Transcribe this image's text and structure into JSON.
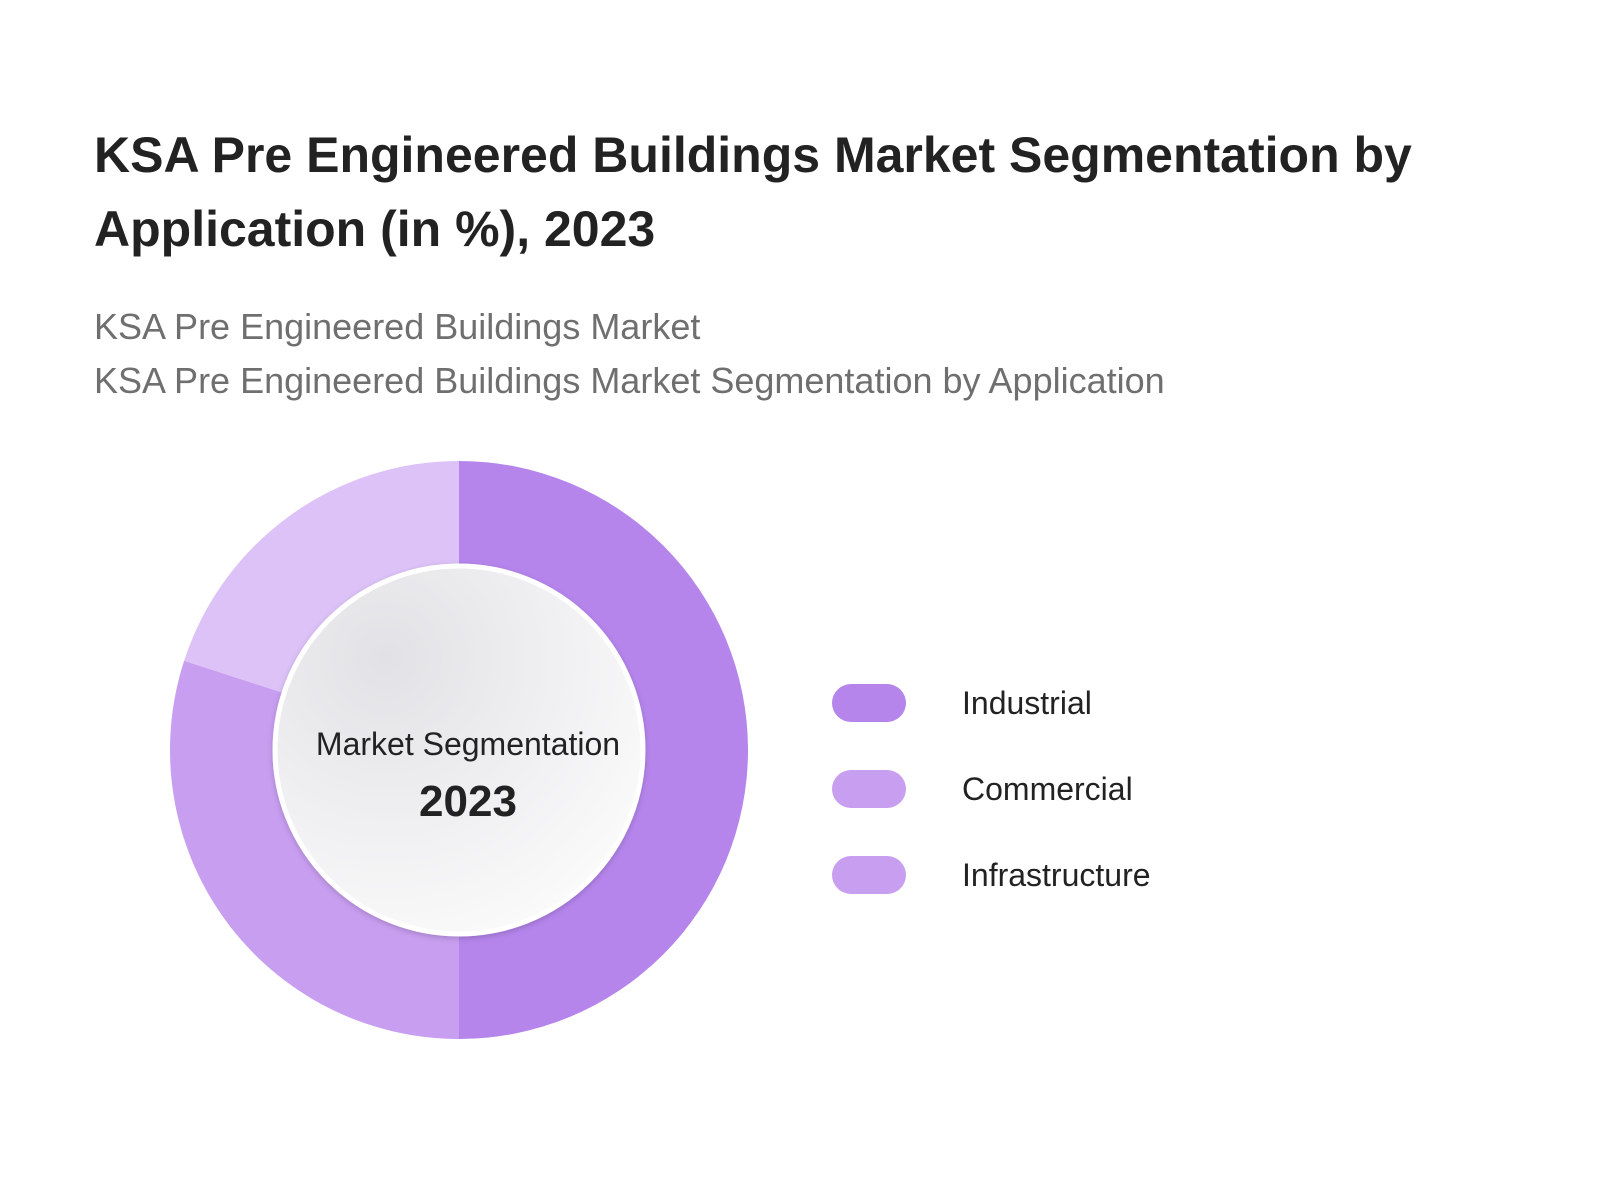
{
  "header": {
    "title": "KSA Pre Engineered Buildings Market Segmentation by Application (in %), 2023",
    "subtitle_lines": [
      "KSA Pre Engineered Buildings Market",
      "KSA Pre Engineered Buildings Market Segmentation by Application"
    ]
  },
  "center": {
    "caption": "Market Segmentation",
    "year": "2023"
  },
  "chart_data": {
    "type": "pie",
    "variant": "donut",
    "title": "KSA Pre Engineered Buildings Market Segmentation by Application (in %), 2023",
    "categories": [
      "Industrial",
      "Commercial",
      "Infrastructure"
    ],
    "values": [
      50,
      30,
      20
    ],
    "unit": "%",
    "colors": [
      "#b585ec",
      "#c89ef0",
      "#dcc2f7"
    ],
    "legend_colors": [
      "#b585ec",
      "#c89ef0",
      "#c89ef0"
    ],
    "legend_position": "right",
    "start_angle": "top",
    "direction": "clockwise"
  }
}
